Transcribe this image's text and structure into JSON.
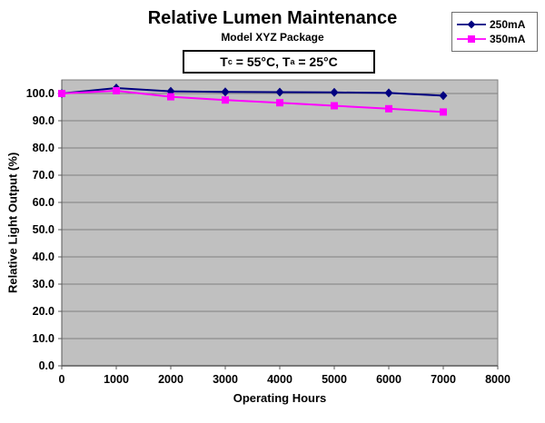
{
  "header": {
    "title": "Relative Lumen Maintenance",
    "subtitle": "Model XYZ Package"
  },
  "annotation": {
    "part1": "T",
    "sub1": "c",
    "part2": " = 55°C, T",
    "sub2": "a",
    "part3": " = 25°C"
  },
  "legend": {
    "position": "top-right",
    "entries": [
      {
        "label": "250mA",
        "color": "#000080",
        "marker": "diamond"
      },
      {
        "label": "350mA",
        "color": "#ff00ff",
        "marker": "square"
      }
    ]
  },
  "chart_data": {
    "type": "line",
    "title": "Relative Lumen Maintenance",
    "subtitle": "Model XYZ Package",
    "annotation": "Tc = 55°C, Ta = 25°C",
    "xlabel": "Operating Hours",
    "ylabel": "Relative Light Output (%)",
    "x": [
      0,
      1000,
      2000,
      3000,
      4000,
      5000,
      6000,
      7000
    ],
    "series": [
      {
        "name": "250mA",
        "color": "#000080",
        "marker": "diamond",
        "values": [
          100.0,
          102.0,
          100.8,
          100.6,
          100.5,
          100.4,
          100.2,
          99.2
        ]
      },
      {
        "name": "350mA",
        "color": "#ff00ff",
        "marker": "square",
        "values": [
          100.0,
          101.0,
          98.8,
          97.6,
          96.6,
          95.5,
          94.4,
          93.2
        ]
      }
    ],
    "xlim": [
      0,
      8000
    ],
    "ylim": [
      0,
      105
    ],
    "x_tick_values": [
      0,
      1000,
      2000,
      3000,
      4000,
      5000,
      6000,
      7000,
      8000
    ],
    "x_tick_labels": [
      "0",
      "1000",
      "2000",
      "3000",
      "4000",
      "5000",
      "6000",
      "7000",
      "8000"
    ],
    "y_tick_values": [
      0,
      10,
      20,
      30,
      40,
      50,
      60,
      70,
      80,
      90,
      100
    ],
    "y_tick_labels": [
      "0.0",
      "10.0",
      "20.0",
      "30.0",
      "40.0",
      "50.0",
      "60.0",
      "70.0",
      "80.0",
      "90.0",
      "100.0"
    ],
    "grid": true,
    "legend_position": "top-right",
    "plot_background": "#c0c0c0",
    "grid_color": "#808080",
    "axis_color": "#595959",
    "tick_label_color": "#000000"
  }
}
